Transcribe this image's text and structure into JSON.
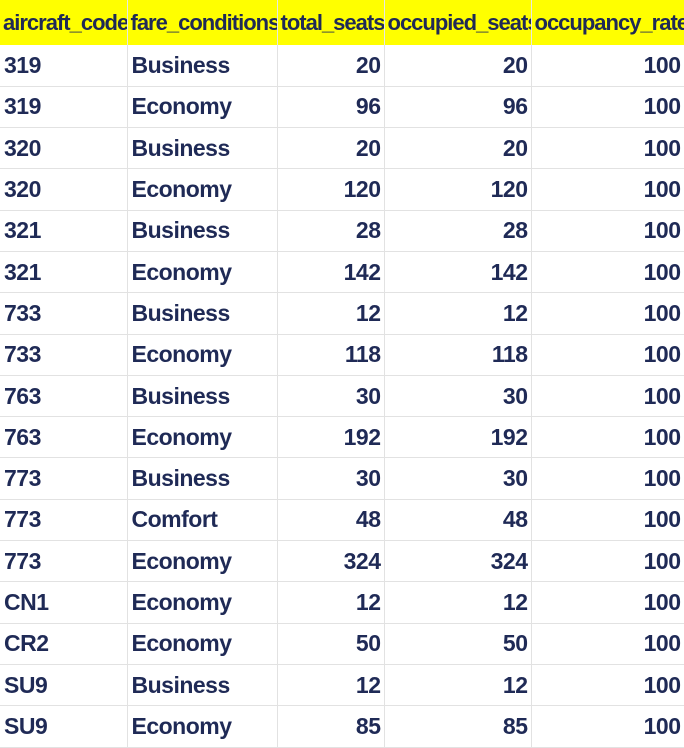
{
  "table": {
    "headers": [
      "aircraft_code",
      "fare_conditions",
      "total_seats",
      "occupied_seats",
      "occupancy_rate"
    ],
    "header_bg": "#ffff00",
    "text_color": "#1f2a56",
    "rows": [
      [
        "319",
        "Business",
        "20",
        "20",
        "100"
      ],
      [
        "319",
        "Economy",
        "96",
        "96",
        "100"
      ],
      [
        "320",
        "Business",
        "20",
        "20",
        "100"
      ],
      [
        "320",
        "Economy",
        "120",
        "120",
        "100"
      ],
      [
        "321",
        "Business",
        "28",
        "28",
        "100"
      ],
      [
        "321",
        "Economy",
        "142",
        "142",
        "100"
      ],
      [
        "733",
        "Business",
        "12",
        "12",
        "100"
      ],
      [
        "733",
        "Economy",
        "118",
        "118",
        "100"
      ],
      [
        "763",
        "Business",
        "30",
        "30",
        "100"
      ],
      [
        "763",
        "Economy",
        "192",
        "192",
        "100"
      ],
      [
        "773",
        "Business",
        "30",
        "30",
        "100"
      ],
      [
        "773",
        "Comfort",
        "48",
        "48",
        "100"
      ],
      [
        "773",
        "Economy",
        "324",
        "324",
        "100"
      ],
      [
        "CN1",
        "Economy",
        "12",
        "12",
        "100"
      ],
      [
        "CR2",
        "Economy",
        "50",
        "50",
        "100"
      ],
      [
        "SU9",
        "Business",
        "12",
        "12",
        "100"
      ],
      [
        "SU9",
        "Economy",
        "85",
        "85",
        "100"
      ]
    ]
  }
}
